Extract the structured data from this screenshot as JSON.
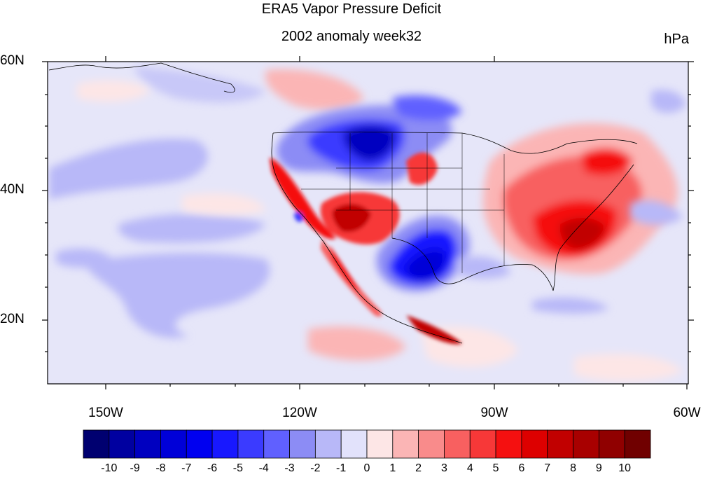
{
  "title": "ERA5 Vapor Pressure Deficit",
  "subtitle": "2002 anomaly week32",
  "units": "hPa",
  "latitude_labels": [
    "60N",
    "40N",
    "20N"
  ],
  "longitude_labels": [
    "150W",
    "120W",
    "90W",
    "60W"
  ],
  "map_extent": {
    "lon_min": -160,
    "lon_max": -60,
    "lat_min": 10,
    "lat_max": 60
  },
  "colorbar": {
    "tick_labels": [
      "-10",
      "-9",
      "-8",
      "-7",
      "-6",
      "-5",
      "-4",
      "-3",
      "-2",
      "-1",
      "0",
      "1",
      "2",
      "3",
      "4",
      "5",
      "6",
      "7",
      "8",
      "9",
      "10"
    ],
    "colors": [
      "#000070",
      "#0000a0",
      "#0000c0",
      "#0000d8",
      "#0000f0",
      "#1818ff",
      "#3b3bff",
      "#6060ff",
      "#8c8cf5",
      "#b8b8f8",
      "#e2e2fb",
      "#fde6e6",
      "#fbb5b5",
      "#f98b8b",
      "#f86060",
      "#f73838",
      "#f51010",
      "#dd0000",
      "#c10000",
      "#a80000",
      "#900000",
      "#700000"
    ]
  },
  "colors": {
    "background_field": "#e6e6f9",
    "coastline": "#000000"
  }
}
